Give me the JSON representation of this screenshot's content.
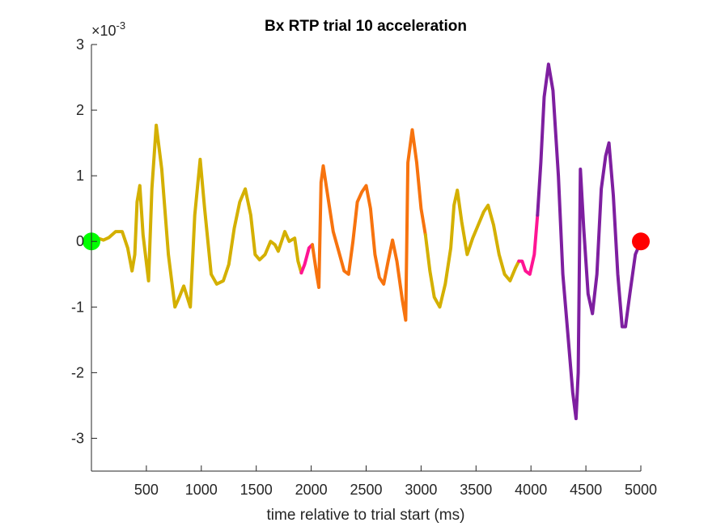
{
  "chart_data": {
    "type": "line",
    "title": "Bx  RTP trial 10 acceleration",
    "xlabel": "time relative to trial start (ms)",
    "ylabel": "",
    "y_exponent_base": "×10",
    "y_exponent_power": "-3",
    "xlim": [
      0,
      5000
    ],
    "ylim": [
      -3.5,
      3
    ],
    "xticks": [
      500,
      1000,
      1500,
      2000,
      2500,
      3000,
      3500,
      4000,
      4500,
      5000
    ],
    "yticks": [
      -3,
      -2,
      -1,
      0,
      1,
      2,
      3
    ],
    "grid": false,
    "colors": {
      "olive": "#d4b000",
      "magenta": "#ff1493",
      "orange": "#f7730e",
      "purple": "#7e1fa0",
      "start_marker": "#00ff00",
      "end_marker": "#ff0000",
      "axis": "#262626"
    },
    "series": [
      {
        "color_key": "olive",
        "points": [
          [
            0,
            0.05
          ],
          [
            60,
            0.05
          ],
          [
            110,
            0.02
          ],
          [
            160,
            0.06
          ],
          [
            220,
            0.15
          ],
          [
            280,
            0.15
          ],
          [
            330,
            -0.1
          ],
          [
            370,
            -0.45
          ],
          [
            395,
            -0.2
          ],
          [
            415,
            0.6
          ],
          [
            440,
            0.85
          ],
          [
            470,
            0.1
          ],
          [
            520,
            -0.6
          ],
          [
            550,
            0.8
          ],
          [
            590,
            1.77
          ],
          [
            640,
            1.1
          ],
          [
            700,
            -0.2
          ],
          [
            760,
            -1.0
          ],
          [
            800,
            -0.85
          ],
          [
            840,
            -0.68
          ],
          [
            900,
            -1.0
          ],
          [
            940,
            0.4
          ],
          [
            990,
            1.25
          ],
          [
            1030,
            0.5
          ],
          [
            1090,
            -0.5
          ],
          [
            1140,
            -0.65
          ],
          [
            1200,
            -0.6
          ],
          [
            1250,
            -0.35
          ],
          [
            1300,
            0.2
          ],
          [
            1350,
            0.6
          ],
          [
            1400,
            0.8
          ],
          [
            1450,
            0.4
          ],
          [
            1490,
            -0.2
          ],
          [
            1530,
            -0.28
          ],
          [
            1580,
            -0.2
          ],
          [
            1630,
            0.0
          ],
          [
            1670,
            -0.05
          ],
          [
            1700,
            -0.15
          ],
          [
            1740,
            0.05
          ],
          [
            1760,
            0.15
          ],
          [
            1800,
            0.0
          ],
          [
            1850,
            0.05
          ],
          [
            1880,
            -0.3
          ],
          [
            1910,
            -0.48
          ]
        ]
      },
      {
        "color_key": "magenta",
        "points": [
          [
            1910,
            -0.48
          ],
          [
            1940,
            -0.35
          ],
          [
            1980,
            -0.1
          ],
          [
            2010,
            -0.05
          ]
        ]
      },
      {
        "color_key": "orange",
        "points": [
          [
            2010,
            -0.05
          ],
          [
            2050,
            -0.5
          ],
          [
            2070,
            -0.7
          ],
          [
            2090,
            0.9
          ],
          [
            2110,
            1.15
          ],
          [
            2150,
            0.7
          ],
          [
            2200,
            0.15
          ],
          [
            2250,
            -0.15
          ],
          [
            2300,
            -0.45
          ],
          [
            2340,
            -0.5
          ],
          [
            2380,
            0.0
          ],
          [
            2420,
            0.6
          ],
          [
            2460,
            0.75
          ],
          [
            2500,
            0.85
          ],
          [
            2540,
            0.5
          ],
          [
            2580,
            -0.2
          ],
          [
            2620,
            -0.55
          ],
          [
            2660,
            -0.65
          ],
          [
            2700,
            -0.3
          ],
          [
            2740,
            0.02
          ],
          [
            2780,
            -0.3
          ],
          [
            2830,
            -0.9
          ],
          [
            2860,
            -1.2
          ],
          [
            2880,
            1.2
          ],
          [
            2920,
            1.7
          ],
          [
            2960,
            1.2
          ],
          [
            3000,
            0.5
          ],
          [
            3040,
            0.1
          ]
        ]
      },
      {
        "color_key": "olive",
        "points": [
          [
            3040,
            0.1
          ],
          [
            3080,
            -0.45
          ],
          [
            3120,
            -0.85
          ],
          [
            3170,
            -1.0
          ],
          [
            3220,
            -0.65
          ],
          [
            3270,
            -0.1
          ],
          [
            3300,
            0.55
          ],
          [
            3330,
            0.78
          ],
          [
            3370,
            0.3
          ],
          [
            3420,
            -0.2
          ],
          [
            3470,
            0.05
          ],
          [
            3520,
            0.25
          ],
          [
            3570,
            0.45
          ],
          [
            3610,
            0.55
          ],
          [
            3660,
            0.25
          ],
          [
            3710,
            -0.2
          ],
          [
            3760,
            -0.5
          ],
          [
            3810,
            -0.6
          ],
          [
            3860,
            -0.4
          ],
          [
            3890,
            -0.3
          ]
        ]
      },
      {
        "color_key": "magenta",
        "points": [
          [
            3890,
            -0.3
          ],
          [
            3920,
            -0.3
          ],
          [
            3950,
            -0.45
          ],
          [
            3990,
            -0.5
          ],
          [
            4030,
            -0.2
          ],
          [
            4060,
            0.4
          ]
        ]
      },
      {
        "color_key": "purple",
        "points": [
          [
            4060,
            0.4
          ],
          [
            4090,
            1.2
          ],
          [
            4120,
            2.2
          ],
          [
            4160,
            2.7
          ],
          [
            4200,
            2.3
          ],
          [
            4250,
            1.0
          ],
          [
            4290,
            -0.5
          ],
          [
            4340,
            -1.5
          ],
          [
            4380,
            -2.3
          ],
          [
            4410,
            -2.7
          ],
          [
            4430,
            -2.0
          ],
          [
            4450,
            1.1
          ],
          [
            4480,
            0.2
          ],
          [
            4520,
            -0.8
          ],
          [
            4560,
            -1.1
          ],
          [
            4600,
            -0.5
          ],
          [
            4640,
            0.8
          ],
          [
            4680,
            1.3
          ],
          [
            4710,
            1.5
          ],
          [
            4750,
            0.7
          ],
          [
            4790,
            -0.5
          ],
          [
            4830,
            -1.3
          ],
          [
            4860,
            -1.3
          ],
          [
            4900,
            -0.8
          ],
          [
            4950,
            -0.2
          ],
          [
            5000,
            0.0
          ]
        ]
      }
    ],
    "markers": [
      {
        "x": 0,
        "y": 0,
        "color_key": "start_marker"
      },
      {
        "x": 5000,
        "y": 0,
        "color_key": "end_marker"
      }
    ]
  }
}
